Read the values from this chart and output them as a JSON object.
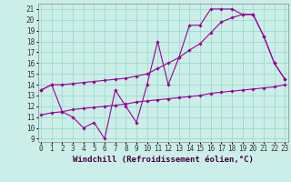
{
  "xlabel": "Windchill (Refroidissement éolien,°C)",
  "bg_color": "#cceee8",
  "grid_color": "#99ddcc",
  "line_color": "#990099",
  "x_min": 0,
  "x_max": 23,
  "y_min": 9,
  "y_max": 21,
  "line1_x": [
    0,
    1,
    2,
    3,
    4,
    5,
    6,
    7,
    8,
    9,
    10,
    11,
    12,
    13,
    14,
    15,
    16,
    17,
    18,
    19,
    20,
    21,
    22,
    23
  ],
  "line1_y": [
    13.5,
    14.0,
    11.5,
    11.0,
    10.0,
    10.5,
    9.0,
    13.5,
    12.0,
    10.5,
    14.0,
    18.0,
    14.0,
    16.5,
    19.5,
    19.5,
    21.0,
    21.0,
    21.0,
    20.5,
    20.5,
    18.5,
    16.0,
    14.5
  ],
  "line2_x": [
    0,
    1,
    2,
    3,
    4,
    5,
    6,
    7,
    8,
    9,
    10,
    11,
    12,
    13,
    14,
    15,
    16,
    17,
    18,
    19,
    20,
    21,
    22,
    23
  ],
  "line2_y": [
    13.5,
    14.0,
    14.0,
    14.1,
    14.2,
    14.3,
    14.4,
    14.5,
    14.6,
    14.8,
    15.0,
    15.5,
    16.0,
    16.5,
    17.2,
    17.8,
    18.8,
    19.8,
    20.2,
    20.5,
    20.5,
    18.5,
    16.0,
    14.5
  ],
  "line3_x": [
    0,
    1,
    2,
    3,
    4,
    5,
    6,
    7,
    8,
    9,
    10,
    11,
    12,
    13,
    14,
    15,
    16,
    17,
    18,
    19,
    20,
    21,
    22,
    23
  ],
  "line3_y": [
    11.2,
    11.4,
    11.5,
    11.7,
    11.8,
    11.9,
    12.0,
    12.1,
    12.2,
    12.4,
    12.5,
    12.6,
    12.7,
    12.8,
    12.9,
    13.0,
    13.2,
    13.3,
    13.4,
    13.5,
    13.6,
    13.7,
    13.8,
    14.0
  ],
  "marker": "D",
  "marker_size": 1.8,
  "line_width": 0.8,
  "tick_fontsize": 5.5,
  "xlabel_fontsize": 6.5
}
